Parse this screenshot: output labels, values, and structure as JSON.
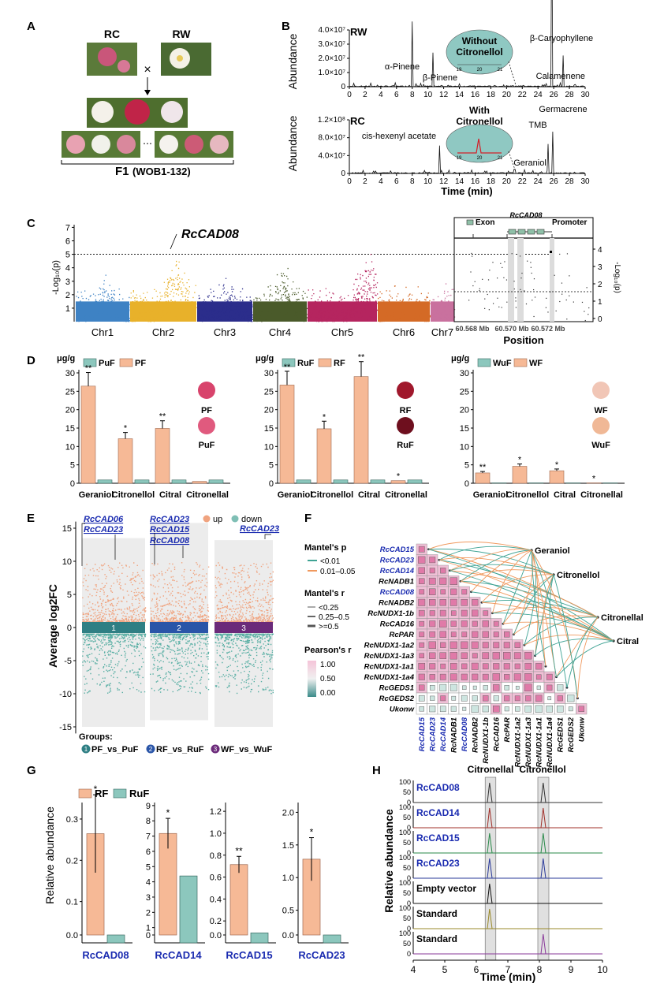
{
  "panels": {
    "A": {
      "letter": "A",
      "parent1": "RC",
      "parent2": "RW",
      "cross": "×",
      "progeny_label": "F1",
      "progeny_range": "(WOB1-132)",
      "flower_colors": [
        "#c9567a",
        "#f4f1e6",
        "#c02448",
        "#e8a2b2",
        "#f1f1ea",
        "#d9889c",
        "#f5f2ee",
        "#cc5b76"
      ]
    },
    "B": {
      "letter": "B",
      "ylabel": "Abundance",
      "xlabel": "Time (min)",
      "x_ticks": [
        "0",
        "2",
        "4",
        "6",
        "8",
        "10",
        "12",
        "14",
        "16",
        "18",
        "20",
        "22",
        "24",
        "26",
        "28",
        "30"
      ],
      "RW": {
        "title": "RW",
        "y_ticks": [
          "0",
          "1.0×10⁷",
          "2.0×10⁷",
          "3.0×10⁷",
          "4.0×10⁷"
        ],
        "inset_label_1": "Without",
        "inset_label_2": "Citronellol",
        "inset_ticks": [
          "19",
          "20",
          "21"
        ],
        "peaks": [
          {
            "label": "α-Pinene",
            "x": 8.0,
            "y": 1.15
          },
          {
            "label": "β-Pinene",
            "x": 10.6,
            "y": 0.6
          },
          {
            "label": "β-Caryophyllene",
            "x": 25.8,
            "y": 3.2
          },
          {
            "label": "Calamenene",
            "x": 27.2,
            "y": 0.55
          }
        ]
      },
      "RC": {
        "title": "RC",
        "y_ticks": [
          "0",
          "4.0×10⁷",
          "8.0×10⁷",
          "1.2×10⁸"
        ],
        "inset_label_1": "With",
        "inset_label_2": "Citronellol",
        "inset_ticks": [
          "19",
          "20",
          "21"
        ],
        "peaks": [
          {
            "label": "cis-hexenyl acetate",
            "x": 11.5,
            "y": 0.52
          },
          {
            "label": "Geraniol",
            "x": 21.0,
            "y": 0.08
          },
          {
            "label": "TMB",
            "x": 25.3,
            "y": 0.55
          },
          {
            "label": "Germacrene",
            "x": 25.9,
            "y": 0.78
          }
        ]
      }
    },
    "C": {
      "letter": "C",
      "gene": "RcCAD08",
      "ylabel": "-Log₁₀(p)",
      "y_ticks": [
        "1",
        "2",
        "3",
        "4",
        "5",
        "6",
        "7"
      ],
      "chromosomes": [
        {
          "name": "Chr1",
          "color": "#3e82c4",
          "peak": 4.2
        },
        {
          "name": "Chr2",
          "color": "#e8b12a",
          "peak": 5.6
        },
        {
          "name": "Chr3",
          "color": "#2b2d8b",
          "peak": 3.9
        },
        {
          "name": "Chr4",
          "color": "#4a5a2a",
          "peak": 4.9
        },
        {
          "name": "Chr5",
          "color": "#b5255f",
          "peak": 6.3
        },
        {
          "name": "Chr6",
          "color": "#d46a26",
          "peak": 3.6
        },
        {
          "name": "Chr7",
          "color": "#c9719e",
          "peak": 3.2
        }
      ],
      "zoom": {
        "exon_label": "Exon",
        "gene_label": "RcCAD08",
        "promoter_label": "Promoter",
        "x_ticks": [
          "60.568 Mb",
          "60.570 Mb",
          "60.572 Mb"
        ],
        "xlabel": "Position",
        "ylabel_right": "-Log₁₀(p)",
        "y_ticks": [
          "0",
          "1",
          "2",
          "3",
          "4"
        ]
      }
    },
    "D": {
      "letter": "D",
      "unit": "μg/g",
      "y_ticks": [
        "0",
        "5",
        "10",
        "15",
        "20",
        "25",
        "30"
      ],
      "charts": [
        {
          "legend_a": "PuF",
          "legend_b": "PF",
          "categories": [
            "Geraniol",
            "Citronellol",
            "Citral",
            "Citronellal"
          ],
          "values_b": [
            26.4,
            12.1,
            14.9,
            0.5
          ],
          "values_a": [
            0.9,
            0.9,
            0.9,
            0.9
          ],
          "sig": [
            "**",
            "*",
            "**",
            ""
          ],
          "flower_top": "PF",
          "flower_bottom": "PuF",
          "flower_colors": [
            "#d8446c",
            "#e05a7e"
          ]
        },
        {
          "legend_a": "RuF",
          "legend_b": "RF",
          "categories": [
            "Geraniol",
            "Citronellol",
            "Citral",
            "Citronellal"
          ],
          "values_b": [
            26.7,
            14.8,
            29.0,
            0.7
          ],
          "values_a": [
            0.9,
            0.9,
            0.9,
            0.9
          ],
          "sig": [
            "**",
            "*",
            "**",
            "*"
          ],
          "flower_top": "RF",
          "flower_bottom": "RuF",
          "flower_colors": [
            "#a0182c",
            "#6e0f1e"
          ]
        },
        {
          "legend_a": "WuF",
          "legend_b": "WF",
          "categories": [
            "Geraniol",
            "Citronellol",
            "Citral",
            "Citronellal"
          ],
          "values_b": [
            2.8,
            4.6,
            3.4,
            0.1
          ],
          "values_a": [
            0.1,
            0.1,
            0.1,
            0.1
          ],
          "sig": [
            "**",
            "*",
            "*",
            "*"
          ],
          "flower_top": "WF",
          "flower_bottom": "WuF",
          "flower_colors": [
            "#f1c6b6",
            "#f0b896"
          ]
        }
      ]
    },
    "E": {
      "letter": "E",
      "ylabel": "Average log2FC",
      "y_ticks": [
        "-15",
        "-10",
        "-5",
        "0",
        "5",
        "10",
        "15"
      ],
      "legend_up": "up",
      "legend_down": "down",
      "groups_label": "Groups:",
      "groups": [
        {
          "num": "1",
          "label": "PF_vs_PuF",
          "color": "#2f7f84"
        },
        {
          "num": "2",
          "label": "RF_vs_RuF",
          "color": "#2a55a8"
        },
        {
          "num": "3",
          "label": "WF_vs_WuF",
          "color": "#6b2a7a"
        }
      ],
      "gene_labels": [
        "RcCAD06",
        "RcCAD23",
        "RcCAD23",
        "RcCAD15",
        "RcCAD08",
        "RcCAD23"
      ]
    },
    "F": {
      "letter": "F",
      "mantel_p_title": "Mantel's p",
      "mantel_p_items": [
        "<0.01",
        "0.01–0.05"
      ],
      "mantel_r_title": "Mantel's r",
      "mantel_r_items": [
        "<0.25",
        "0.25–0.5",
        ">=0.5"
      ],
      "pearson_title": "Pearson's r",
      "pearson_ticks": [
        "1.00",
        "0.50",
        "0.00"
      ],
      "genes": [
        "RcCAD15",
        "RcCAD23",
        "RcCAD14",
        "RcNADB1",
        "RcCAD08",
        "RcNADB2",
        "RcNUDX1-1b",
        "RcCAD16",
        "RcPAR",
        "RcNUDX1-1a2",
        "RcNUDX1-1a3",
        "RcNUDX1-1a1",
        "RcNUDX1-1a4",
        "RcGEDS1",
        "RcGEDS2",
        "Ukonw"
      ],
      "highlighted": [
        "RcCAD15",
        "RcCAD23",
        "RcCAD14",
        "RcCAD08"
      ],
      "compounds": [
        "Geraniol",
        "Citronellol",
        "Citronellal",
        "Citral"
      ]
    },
    "G": {
      "letter": "G",
      "ylabel": "Relative abundance",
      "legend_a": "RF",
      "legend_b": "RuF",
      "charts": [
        {
          "gene": "RcCAD08",
          "y_ticks": [
            "0.0",
            "0.1",
            "0.2",
            "0.3"
          ],
          "ymax": 0.34,
          "rf": 0.26,
          "ruf": 0.0,
          "err": 0.1,
          "sig": "*"
        },
        {
          "gene": "RcCAD14",
          "y_ticks": [
            "0",
            "1",
            "2",
            "3",
            "4",
            "5",
            "6",
            "7",
            "8",
            "9"
          ],
          "ymax": 9.2,
          "rf": 7.05,
          "ruf": 4.1,
          "err": 1.05,
          "sig": "*"
        },
        {
          "gene": "RcCAD15",
          "y_ticks": [
            "0.0",
            "0.2",
            "0.4",
            "0.6",
            "0.8",
            "1.0",
            "1.2"
          ],
          "ymax": 1.28,
          "rf": 0.68,
          "ruf": 0.02,
          "err": 0.08,
          "sig": "**"
        },
        {
          "gene": "RcCAD23",
          "y_ticks": [
            "0.0",
            "0.5",
            "1.0",
            "1.5",
            "2.0"
          ],
          "ymax": 2.15,
          "rf": 1.23,
          "ruf": 0.0,
          "err": 0.35,
          "sig": "*"
        }
      ]
    },
    "H": {
      "letter": "H",
      "ylabel": "Relative abundance",
      "xlabel": "Time (min)",
      "x_ticks": [
        "4",
        "5",
        "6",
        "7",
        "8",
        "9",
        "10"
      ],
      "peak1_label": "Citronellal",
      "peak2_label": "Citronellol",
      "rows": [
        {
          "label": "RcCAD08",
          "blue": true,
          "color": "#333333",
          "p1": 1,
          "p2": 1
        },
        {
          "label": "RcCAD14",
          "blue": true,
          "color": "#a0302a",
          "p1": 1,
          "p2": 1
        },
        {
          "label": "RcCAD15",
          "blue": true,
          "color": "#2a8a4a",
          "p1": 1,
          "p2": 1
        },
        {
          "label": "RcCAD23",
          "blue": true,
          "color": "#2a3a9a",
          "p1": 1,
          "p2": 1
        },
        {
          "label": "Empty vector",
          "blue": false,
          "color": "#111111",
          "p1": 1,
          "p2": 0
        },
        {
          "label": "Standard",
          "blue": false,
          "color": "#9a8a2a",
          "p1": 1,
          "p2": 0
        },
        {
          "label": "Standard",
          "blue": false,
          "color": "#8a3a9a",
          "p1": 0,
          "p2": 1
        }
      ],
      "row_ticks": [
        "0",
        "50",
        "100"
      ]
    }
  }
}
